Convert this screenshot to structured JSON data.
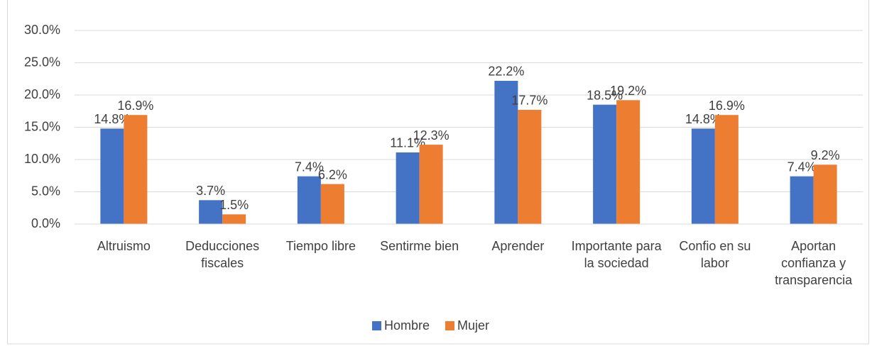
{
  "chart_data": {
    "type": "bar",
    "categories": [
      "Altruismo",
      "Deducciones fiscales",
      "Tiempo libre",
      "Sentirme bien",
      "Aprender",
      "Importante para la sociedad",
      "Confio en su labor",
      "Aportan confianza y transparencia"
    ],
    "series": [
      {
        "name": "Hombre",
        "color": "#4472c4",
        "values": [
          14.8,
          3.7,
          7.4,
          11.1,
          22.2,
          18.5,
          14.8,
          7.4
        ],
        "value_labels": [
          "14.8%",
          "3.7%",
          "7.4%",
          "11.1%",
          "22.2%",
          "18.5%",
          "14.8%",
          "7.4%"
        ]
      },
      {
        "name": "Mujer",
        "color": "#ed7d31",
        "values": [
          16.9,
          1.5,
          6.2,
          12.3,
          17.7,
          19.2,
          16.9,
          9.2
        ],
        "value_labels": [
          "16.9%",
          "1.5%",
          "6.2%",
          "12.3%",
          "17.7%",
          "19.2%",
          "16.9%",
          "9.2%"
        ]
      }
    ],
    "ylim": [
      0,
      30
    ],
    "yticks": [
      {
        "value": 0,
        "label": "0.0%"
      },
      {
        "value": 5,
        "label": "5.0%"
      },
      {
        "value": 10,
        "label": "10.0%"
      },
      {
        "value": 15,
        "label": "15.0%"
      },
      {
        "value": 20,
        "label": "20.0%"
      },
      {
        "value": 25,
        "label": "25.0%"
      },
      {
        "value": 30,
        "label": "30.0%"
      }
    ],
    "grid": true,
    "legend": "bottom"
  }
}
